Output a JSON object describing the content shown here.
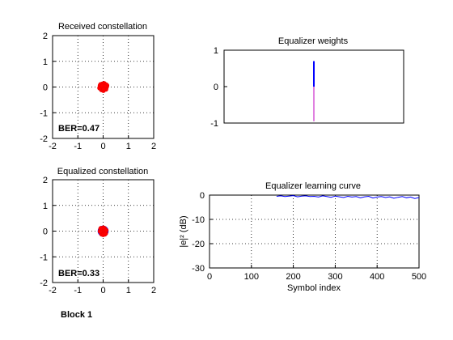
{
  "block_label": "Block 1",
  "chart_data": [
    {
      "id": "received",
      "type": "scatter",
      "title": "Received constellation",
      "xlim": [
        -2,
        2
      ],
      "ylim": [
        -2,
        2
      ],
      "xticks": [
        -2,
        -1,
        0,
        1,
        2
      ],
      "yticks": [
        -2,
        -1,
        0,
        1,
        2
      ],
      "grid": true,
      "annotation": "BER=0.47",
      "points": [
        [
          -0.1,
          0.02
        ],
        [
          -0.05,
          0.08
        ],
        [
          0.0,
          0.1
        ],
        [
          0.05,
          0.08
        ],
        [
          0.1,
          0.03
        ],
        [
          0.12,
          -0.03
        ],
        [
          0.08,
          -0.08
        ],
        [
          0.02,
          -0.11
        ],
        [
          -0.04,
          -0.1
        ],
        [
          -0.09,
          -0.06
        ],
        [
          -0.13,
          -0.01
        ],
        [
          -0.06,
          0.0
        ],
        [
          0.0,
          0.03
        ],
        [
          0.05,
          -0.02
        ],
        [
          -0.02,
          -0.05
        ],
        [
          0.03,
          0.05
        ],
        [
          -0.08,
          0.05
        ],
        [
          0.09,
          -0.04
        ],
        [
          0.14,
          0.01
        ],
        [
          -0.12,
          0.06
        ],
        [
          -0.03,
          0.12
        ],
        [
          0.07,
          0.11
        ],
        [
          0.11,
          -0.09
        ],
        [
          -0.07,
          -0.11
        ],
        [
          0.01,
          -0.14
        ],
        [
          -0.14,
          -0.04
        ],
        [
          0.15,
          0.06
        ],
        [
          0.04,
          0.14
        ],
        [
          -0.1,
          0.1
        ],
        [
          0.12,
          0.09
        ],
        [
          -0.01,
          0.0
        ],
        [
          0.06,
          0.02
        ],
        [
          -0.04,
          0.04
        ],
        [
          0.02,
          -0.08
        ]
      ]
    },
    {
      "id": "weights",
      "type": "stem",
      "title": "Equalizer weights",
      "xlim": [
        0,
        21
      ],
      "ylim": [
        -1,
        1
      ],
      "yticks": [
        -1,
        0,
        1
      ],
      "grid": false,
      "series": [
        {
          "part": "real",
          "color": "#0000ff",
          "x": [
            10.5
          ],
          "y": [
            0.7
          ]
        },
        {
          "part": "imag",
          "color": "#c000c0",
          "x": [
            10.5
          ],
          "y": [
            -0.95
          ]
        }
      ]
    },
    {
      "id": "equalized",
      "type": "scatter",
      "title": "Equalized constellation",
      "xlim": [
        -2,
        2
      ],
      "ylim": [
        -2,
        2
      ],
      "xticks": [
        -2,
        -1,
        0,
        1,
        2
      ],
      "yticks": [
        -2,
        -1,
        0,
        1,
        2
      ],
      "grid": true,
      "annotation": "BER=0.33",
      "ring_radius": 0.2,
      "points": [
        [
          -0.08,
          0.02
        ],
        [
          -0.04,
          0.07
        ],
        [
          0.0,
          0.09
        ],
        [
          0.05,
          0.06
        ],
        [
          0.08,
          0.01
        ],
        [
          0.09,
          -0.04
        ],
        [
          0.05,
          -0.08
        ],
        [
          0.0,
          -0.1
        ],
        [
          -0.05,
          -0.08
        ],
        [
          -0.08,
          -0.04
        ],
        [
          -0.02,
          0.0
        ],
        [
          0.02,
          0.02
        ],
        [
          0.03,
          -0.03
        ],
        [
          -0.03,
          0.04
        ],
        [
          0.06,
          0.1
        ],
        [
          -0.1,
          0.08
        ],
        [
          0.1,
          -0.09
        ],
        [
          -0.06,
          -0.12
        ],
        [
          0.01,
          0.13
        ],
        [
          0.12,
          0.03
        ],
        [
          -0.12,
          -0.01
        ],
        [
          0.0,
          -0.14
        ],
        [
          0.07,
          -0.12
        ],
        [
          -0.09,
          0.11
        ]
      ]
    },
    {
      "id": "learning",
      "type": "line",
      "title": "Equalizer learning curve",
      "xlabel": "Symbol index",
      "ylabel": "|e|² (dB)",
      "xlim": [
        0,
        500
      ],
      "ylim": [
        -30,
        0
      ],
      "xticks": [
        0,
        100,
        200,
        300,
        400,
        500
      ],
      "yticks": [
        -30,
        -20,
        -10,
        0
      ],
      "grid": true,
      "color": "#0000ff",
      "x": [
        160,
        170,
        180,
        190,
        200,
        210,
        220,
        230,
        240,
        250,
        260,
        270,
        280,
        290,
        300,
        310,
        320,
        330,
        340,
        350,
        360,
        370,
        380,
        390,
        400,
        410,
        420,
        430,
        440,
        450,
        460,
        470,
        480,
        490,
        500
      ],
      "y": [
        -0.5,
        -0.3,
        -0.6,
        -0.4,
        -0.2,
        -0.7,
        -0.4,
        -0.3,
        -0.6,
        -0.5,
        -0.8,
        -0.3,
        -0.6,
        -0.9,
        -0.4,
        -0.7,
        -1.0,
        -0.5,
        -0.8,
        -0.6,
        -1.1,
        -0.7,
        -0.5,
        -1.2,
        -0.8,
        -0.6,
        -1.0,
        -0.7,
        -1.3,
        -0.9,
        -0.6,
        -1.1,
        -0.8,
        -1.4,
        -1.0
      ]
    }
  ]
}
